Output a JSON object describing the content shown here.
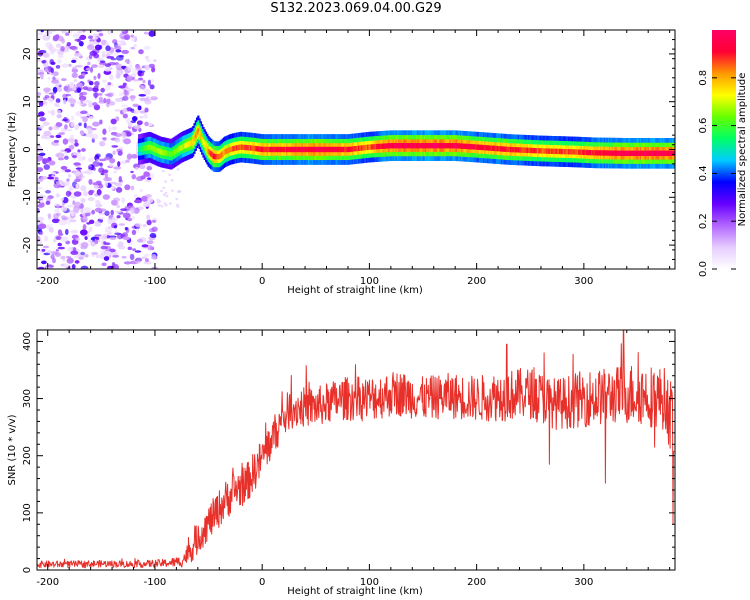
{
  "title": "S132.2023.069.04.00.G29",
  "chart_data": [
    {
      "type": "heatmap",
      "xlabel": "Height of straight line (km)",
      "ylabel": "Frequency (Hz)",
      "xlim": [
        -210,
        385
      ],
      "ylim": [
        -25,
        25
      ],
      "xticks": [
        -200,
        -100,
        0,
        100,
        200,
        300
      ],
      "yticks": [
        -20,
        -10,
        0,
        10,
        20
      ],
      "colorbar": {
        "label": "Normalized spectral amplitude",
        "range": [
          0,
          1
        ],
        "ticks": [
          "0.0",
          "0.2",
          "0.4",
          "0.6",
          "0.8"
        ],
        "colors": [
          "#ffffff",
          "#e6ccff",
          "#b366ff",
          "#6600ff",
          "#0000ff",
          "#00ccff",
          "#00ff66",
          "#66ff00",
          "#ffff00",
          "#ff9900",
          "#ff0033",
          "#ff0066"
        ]
      },
      "noise_region": {
        "x_range": [
          -210,
          -100
        ],
        "y_range": [
          -25,
          25
        ]
      },
      "ridge": {
        "x": [
          -115,
          -105,
          -95,
          -85,
          -75,
          -65,
          -60,
          -55,
          -50,
          -45,
          -40,
          -35,
          -30,
          -25,
          -20,
          -10,
          0,
          20,
          50,
          80,
          100,
          120,
          150,
          180,
          200,
          230,
          260,
          290,
          310,
          340,
          385
        ],
        "freq": [
          0.0,
          0.5,
          -0.5,
          -1.0,
          0.5,
          1.5,
          4.0,
          1.5,
          -0.5,
          -1.5,
          -1.5,
          -0.5,
          0.0,
          0.3,
          0.5,
          0.3,
          0.0,
          0.0,
          0.0,
          0.0,
          0.5,
          0.8,
          0.8,
          0.8,
          0.5,
          0.0,
          -0.3,
          -0.5,
          -0.7,
          -0.8,
          -0.8
        ],
        "amplitude": [
          0.55,
          0.7,
          0.7,
          0.65,
          0.7,
          0.8,
          0.85,
          0.75,
          0.85,
          0.95,
          0.9,
          0.85,
          0.85,
          0.9,
          0.9,
          0.9,
          0.95,
          0.95,
          1.0,
          0.95,
          0.9,
          1.0,
          1.0,
          1.0,
          0.95,
          0.95,
          0.9,
          0.9,
          0.95,
          1.0,
          1.0
        ]
      }
    },
    {
      "type": "line",
      "xlabel": "Height of straight line (km)",
      "ylabel": "SNR (10 * v/v)",
      "xlim": [
        -210,
        385
      ],
      "ylim": [
        0,
        420
      ],
      "xticks": [
        -200,
        -100,
        0,
        100,
        200,
        300
      ],
      "yticks": [
        0,
        100,
        200,
        300,
        400
      ],
      "series": [
        {
          "color": "#e8302a",
          "x": [
            -210,
            -180,
            -150,
            -120,
            -90,
            -75,
            -65,
            -55,
            -45,
            -35,
            -25,
            -15,
            -5,
            5,
            15,
            25,
            35,
            50,
            75,
            100,
            125,
            150,
            175,
            200,
            225,
            250,
            275,
            300,
            325,
            350,
            375,
            385
          ],
          "y": [
            10,
            10,
            11,
            10,
            12,
            15,
            40,
            70,
            95,
            120,
            140,
            150,
            180,
            215,
            250,
            280,
            285,
            285,
            300,
            300,
            310,
            300,
            305,
            300,
            305,
            310,
            290,
            300,
            305,
            310,
            300,
            250
          ],
          "noise": [
            6,
            6,
            6,
            6,
            7,
            10,
            25,
            30,
            32,
            35,
            35,
            35,
            35,
            35,
            35,
            35,
            35,
            35,
            38,
            40,
            40,
            38,
            40,
            40,
            45,
            45,
            45,
            50,
            50,
            55,
            55,
            70
          ],
          "spikes": [
            {
              "x": 228,
              "y": 395
            },
            {
              "x": 263,
              "y": 380
            },
            {
              "x": 268,
              "y": 185
            },
            {
              "x": 320,
              "y": 152
            },
            {
              "x": 337,
              "y": 420
            },
            {
              "x": 366,
              "y": 215
            },
            {
              "x": 383,
              "y": 80
            }
          ]
        }
      ]
    }
  ]
}
